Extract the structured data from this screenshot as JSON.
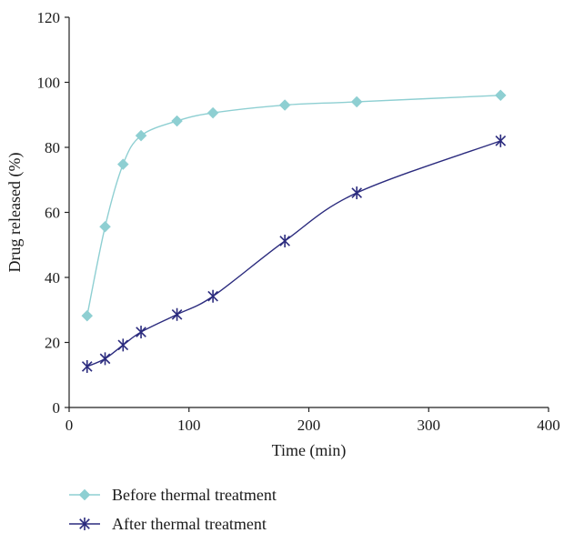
{
  "chart_data": {
    "type": "line",
    "title": "",
    "xlabel": "Time (min)",
    "ylabel": "Drug released (%)",
    "xlim": [
      0,
      400
    ],
    "ylim": [
      0,
      120
    ],
    "xticks": [
      0,
      100,
      200,
      300,
      400
    ],
    "yticks": [
      0,
      20,
      40,
      60,
      80,
      100,
      120
    ],
    "grid": false,
    "legend_position": "bottom-left",
    "x": [
      15,
      30,
      45,
      60,
      90,
      120,
      180,
      240,
      360
    ],
    "series": [
      {
        "name": "Before thermal treatment",
        "color": "#8ecfd2",
        "marker": "diamond",
        "values": [
          28.2,
          55.6,
          74.8,
          83.6,
          88.1,
          90.6,
          93.0,
          94.0,
          96.0
        ]
      },
      {
        "name": "After thermal treatment",
        "color": "#2b2b7e",
        "marker": "asterisk",
        "values": [
          12.6,
          15.0,
          19.2,
          23.2,
          28.6,
          34.2,
          51.2,
          66.0,
          82.0
        ]
      }
    ]
  }
}
